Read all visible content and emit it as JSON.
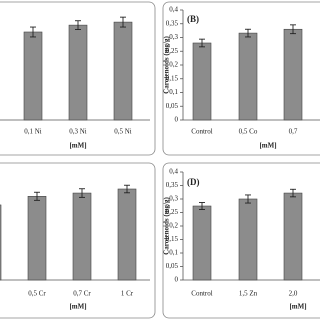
{
  "chart_data": [
    {
      "type": "bar",
      "x_label": "[mM]",
      "categories": [
        "0,1 Ni",
        "0,3 Ni",
        "0,5 Ni"
      ],
      "values": [
        0.32,
        0.345,
        0.356
      ],
      "errors": [
        0.018,
        0.016,
        0.018
      ],
      "ylim": [
        0,
        0.4
      ],
      "color": "#8c8c8c"
    },
    {
      "type": "bar",
      "title": "(B)",
      "y_label": "Carotenoids (mg/g)",
      "x_label": "[mM]",
      "categories": [
        "Control",
        "0,5 Co",
        "0,7"
      ],
      "values": [
        0.28,
        0.316,
        0.33
      ],
      "errors": [
        0.014,
        0.014,
        0.016
      ],
      "ylim": [
        0,
        0.4
      ],
      "yticks": [
        0,
        {
          "value": 0.05,
          "label": "0,05"
        },
        {
          "value": 0.1,
          "label": "0,1"
        },
        {
          "value": 0.15,
          "label": "0,15"
        },
        {
          "value": 0.2,
          "label": "0,2"
        },
        {
          "value": 0.25,
          "label": "0,25"
        },
        {
          "value": 0.3,
          "label": "0,3"
        },
        {
          "value": 0.35,
          "label": "0,35"
        },
        {
          "value": 0.4,
          "label": "0,4"
        }
      ],
      "color": "#8c8c8c"
    },
    {
      "type": "bar",
      "x_label": "[mM]",
      "categories": [
        "ol",
        "0,5 Cr",
        "0,7 Cr",
        "1 Cr"
      ],
      "values": [
        0.278,
        0.31,
        0.322,
        0.337
      ],
      "errors": [
        0.014,
        0.015,
        0.016,
        0.014
      ],
      "ylim": [
        0,
        0.4
      ],
      "color": "#8c8c8c"
    },
    {
      "type": "bar",
      "title": "(D)",
      "y_label": "Carotenoids (mg/g)",
      "x_label": "[mM]",
      "categories": [
        "Control",
        "1,5 Zn",
        "2,0"
      ],
      "values": [
        0.274,
        0.3,
        0.322
      ],
      "errors": [
        0.013,
        0.015,
        0.014
      ],
      "ylim": [
        0,
        0.4
      ],
      "yticks": [
        0,
        {
          "value": 0.05,
          "label": "0,05"
        },
        {
          "value": 0.1,
          "label": "0,1"
        },
        {
          "value": 0.15,
          "label": "0,15"
        },
        {
          "value": 0.2,
          "label": "0,2"
        },
        {
          "value": 0.25,
          "label": "0,25"
        },
        {
          "value": 0.3,
          "label": "0,3"
        },
        {
          "value": 0.35,
          "label": "0,35"
        },
        {
          "value": 0.4,
          "label": "0,4"
        }
      ],
      "color": "#8c8c8c"
    }
  ]
}
